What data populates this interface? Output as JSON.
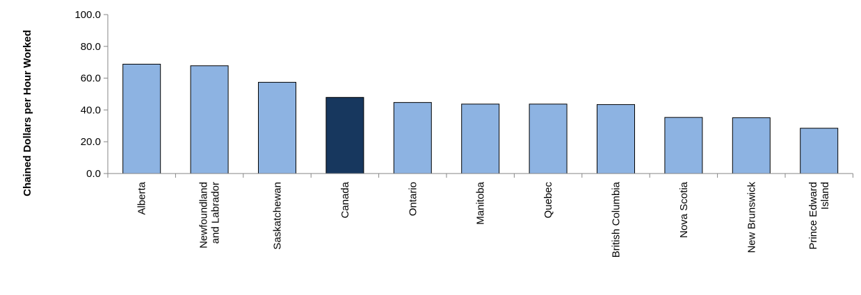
{
  "chart_data": {
    "type": "bar",
    "title": "",
    "xlabel": "",
    "ylabel": "Chained Dollars per Hour Worked",
    "ylim": [
      0,
      100
    ],
    "yticks": [
      "0.0",
      "20.0",
      "40.0",
      "60.0",
      "80.0",
      "100.0"
    ],
    "grid": false,
    "legend": "none",
    "categories": [
      [
        "Alberta"
      ],
      [
        "Newfoundland",
        "and Labrador"
      ],
      [
        "Saskatchewan"
      ],
      [
        "Canada"
      ],
      [
        "Ontario"
      ],
      [
        "Manitoba"
      ],
      [
        "Quebec"
      ],
      [
        "British Columbia"
      ],
      [
        "Nova Scotia"
      ],
      [
        "New Brunswick"
      ],
      [
        "Prince Edward",
        "Island"
      ]
    ],
    "values": [
      68.8,
      67.8,
      57.4,
      47.9,
      44.7,
      43.7,
      43.7,
      43.4,
      35.3,
      35.1,
      28.5
    ],
    "colors": {
      "default_bar": "#8db3e2",
      "highlight_bar": "#17375e",
      "bar_outline": "#000000",
      "axis": "#868686"
    },
    "highlight_index": 3
  }
}
